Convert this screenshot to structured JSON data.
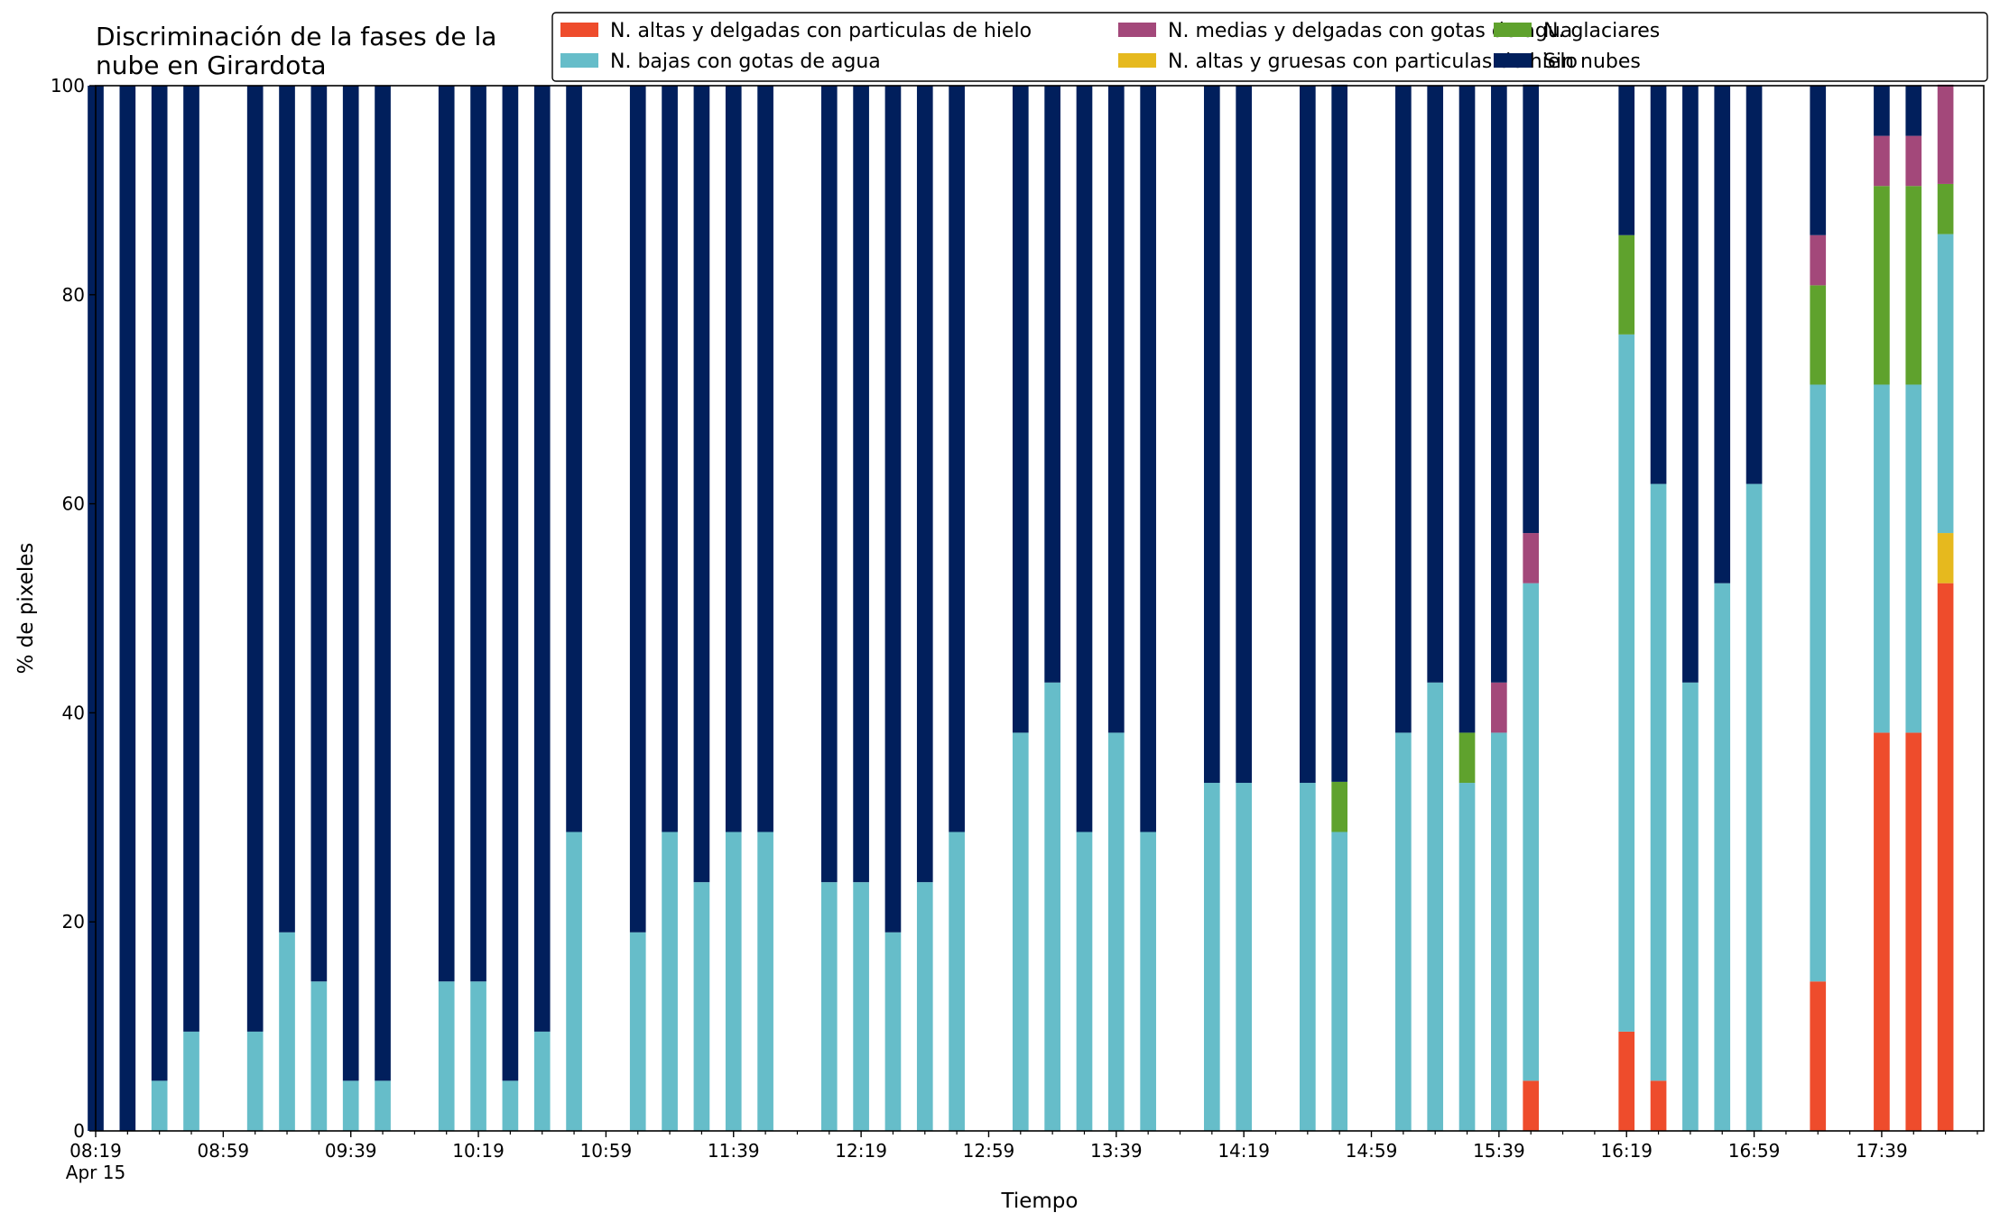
{
  "chart_data": {
    "type": "bar",
    "stacked": true,
    "title": "Discriminación de la fases de la\nnube en Girardota",
    "xlabel": "Tiempo",
    "ylabel": "% de pixeles",
    "ylim": [
      0,
      100
    ],
    "yticks": [
      0,
      20,
      40,
      60,
      80,
      100
    ],
    "grid": false,
    "legend_position": "top-right",
    "x_range_minutes": [
      0,
      592
    ],
    "bar_width_minutes": 5,
    "xtick_minutes": [
      0,
      40,
      80,
      120,
      160,
      200,
      240,
      280,
      320,
      360,
      400,
      440,
      480,
      520,
      560
    ],
    "xticks": [
      "08:19",
      "08:59",
      "09:39",
      "10:19",
      "10:59",
      "11:39",
      "12:19",
      "12:59",
      "13:39",
      "14:19",
      "14:59",
      "15:39",
      "16:19",
      "16:59",
      "17:39"
    ],
    "xtick_sublabel": "Apr 15",
    "minor_xtick_minutes": [
      10,
      20,
      30,
      50,
      60,
      70,
      90,
      100,
      110,
      130,
      140,
      150,
      170,
      180,
      190,
      210,
      220,
      230,
      250,
      260,
      270,
      290,
      300,
      310,
      330,
      340,
      350,
      370,
      380,
      390,
      410,
      420,
      430,
      450,
      460,
      470,
      490,
      500,
      510,
      530,
      540,
      550,
      570,
      580,
      590
    ],
    "x_minutes": [
      0,
      10,
      20,
      30,
      50,
      60,
      70,
      80,
      90,
      110,
      120,
      130,
      140,
      150,
      170,
      180,
      190,
      200,
      210,
      230,
      240,
      250,
      260,
      270,
      290,
      300,
      310,
      320,
      330,
      350,
      360,
      380,
      390,
      410,
      420,
      430,
      440,
      450,
      460,
      480,
      490,
      500,
      510,
      520,
      540,
      560,
      570,
      580
    ],
    "x_time_labels": [
      "08:19",
      "08:29",
      "08:39",
      "08:49",
      "09:09",
      "09:19",
      "09:29",
      "09:39",
      "09:49",
      "10:09",
      "10:19",
      "10:29",
      "10:39",
      "10:49",
      "11:09",
      "11:19",
      "11:29",
      "11:39",
      "11:49",
      "12:09",
      "12:19",
      "12:29",
      "12:39",
      "12:49",
      "13:09",
      "13:19",
      "13:29",
      "13:39",
      "13:49",
      "14:09",
      "14:19",
      "14:39",
      "14:49",
      "15:09",
      "15:19",
      "15:29",
      "15:39",
      "15:49",
      "15:59",
      "16:19",
      "16:29",
      "16:39",
      "16:49",
      "16:59",
      "17:19",
      "17:39",
      "17:49",
      "17:59"
    ],
    "series": [
      {
        "name": "N. altas y delgadas con particulas de hielo",
        "color": "#ee4c2c",
        "values": [
          0,
          0,
          0,
          0,
          0,
          0,
          0,
          0,
          0,
          0,
          0,
          0,
          0,
          0,
          0,
          0,
          0,
          0,
          0,
          0,
          0,
          0,
          0,
          0,
          0,
          0,
          0,
          0,
          0,
          0,
          0,
          0,
          0,
          0,
          0,
          0,
          0,
          4.8,
          0,
          9.5,
          4.8,
          0,
          0,
          0,
          14.3,
          38.1,
          38.1,
          52.4
        ]
      },
      {
        "name": "N. altas y gruesas con particulas de hielo",
        "color": "#e6b91e",
        "values": [
          0,
          0,
          0,
          0,
          0,
          0,
          0,
          0,
          0,
          0,
          0,
          0,
          0,
          0,
          0,
          0,
          0,
          0,
          0,
          0,
          0,
          0,
          0,
          0,
          0,
          0,
          0,
          0,
          0,
          0,
          0,
          0,
          0,
          0,
          0,
          0,
          0,
          0,
          0,
          0,
          0,
          0,
          0,
          0,
          0,
          0,
          0,
          4.8
        ]
      },
      {
        "name": "N. bajas con gotas de agua",
        "color": "#66bdc9",
        "values": [
          0,
          0,
          4.8,
          9.5,
          9.5,
          19.0,
          14.3,
          4.8,
          4.8,
          14.3,
          14.3,
          4.8,
          9.5,
          28.6,
          19.0,
          28.6,
          23.8,
          28.6,
          28.6,
          23.8,
          23.8,
          19.0,
          23.8,
          28.6,
          38.1,
          42.9,
          28.6,
          38.1,
          28.6,
          33.3,
          33.3,
          33.3,
          28.6,
          38.1,
          42.9,
          33.3,
          38.1,
          47.6,
          0,
          66.7,
          57.1,
          42.9,
          52.4,
          61.9,
          57.1,
          33.3,
          33.3,
          28.6
        ]
      },
      {
        "name": "N. glaciares",
        "color": "#5fa22d",
        "values": [
          0,
          0,
          0,
          0,
          0,
          0,
          0,
          0,
          0,
          0,
          0,
          0,
          0,
          0,
          0,
          0,
          0,
          0,
          0,
          0,
          0,
          0,
          0,
          0,
          0,
          0,
          0,
          0,
          0,
          0,
          0,
          0,
          4.8,
          0,
          0,
          4.8,
          0,
          0,
          0,
          9.5,
          0,
          0,
          0,
          0,
          9.5,
          19.0,
          19.0,
          4.8
        ]
      },
      {
        "name": "N. medias y delgadas con gotas de agua",
        "color": "#a3487a",
        "values": [
          0,
          0,
          0,
          0,
          0,
          0,
          0,
          0,
          0,
          0,
          0,
          0,
          0,
          0,
          0,
          0,
          0,
          0,
          0,
          0,
          0,
          0,
          0,
          0,
          0,
          0,
          0,
          0,
          0,
          0,
          0,
          0,
          0,
          0,
          0,
          0,
          4.8,
          4.8,
          0,
          0,
          0,
          0,
          0,
          0,
          4.8,
          4.8,
          4.8,
          9.5
        ]
      },
      {
        "name": "Sin nubes",
        "color": "#011f5c",
        "values": [
          100,
          100,
          95.2,
          90.5,
          90.5,
          81.0,
          85.7,
          95.2,
          95.2,
          85.7,
          85.7,
          95.2,
          90.5,
          71.4,
          81.0,
          71.4,
          76.2,
          71.4,
          71.4,
          76.2,
          76.2,
          81.0,
          76.2,
          71.4,
          61.9,
          57.1,
          71.4,
          61.9,
          71.4,
          66.7,
          66.7,
          66.7,
          66.7,
          61.9,
          57.1,
          61.9,
          57.1,
          42.9,
          0,
          14.3,
          38.1,
          57.1,
          47.6,
          38.1,
          14.3,
          4.8,
          4.8,
          0
        ]
      }
    ]
  }
}
